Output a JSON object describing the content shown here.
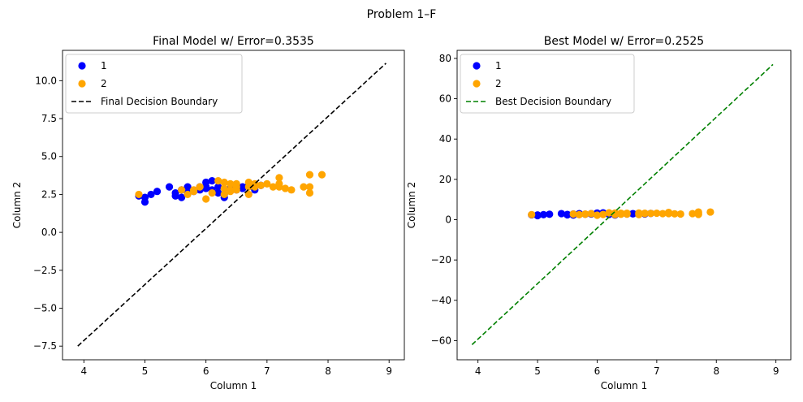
{
  "suptitle": "Problem 1–F",
  "colors": {
    "class1": "#0000ff",
    "class2": "#ffa500",
    "final_boundary": "#000000",
    "best_boundary": "#008000"
  },
  "chart_data": [
    {
      "type": "scatter",
      "title": "Final Model w/ Error=0.3535",
      "xlabel": "Column 1",
      "ylabel": "Column 2",
      "xlim": [
        3.65,
        9.25
      ],
      "ylim": [
        -8.4,
        12.0
      ],
      "xticks": [
        4,
        5,
        6,
        7,
        8,
        9
      ],
      "yticks": [
        -7.5,
        -5.0,
        -2.5,
        0.0,
        2.5,
        5.0,
        7.5,
        10.0
      ],
      "ytick_labels": [
        "−7.5",
        "−5.0",
        "−2.5",
        "0.0",
        "2.5",
        "5.0",
        "7.5",
        "10.0"
      ],
      "grid": false,
      "legend_position": "top-left",
      "series": [
        {
          "name": "1",
          "kind": "points",
          "color": "#0000ff",
          "x": [
            4.9,
            5.0,
            5.0,
            5.1,
            5.2,
            5.4,
            5.5,
            5.5,
            5.6,
            5.6,
            5.7,
            5.7,
            5.8,
            5.9,
            5.9,
            6.0,
            6.0,
            6.0,
            6.1,
            6.1,
            6.2,
            6.2,
            6.3,
            6.3,
            6.4,
            6.5,
            6.5,
            6.6,
            6.6,
            6.7,
            6.8,
            6.9
          ],
          "y": [
            2.4,
            2.3,
            2.0,
            2.5,
            2.7,
            3.0,
            2.4,
            2.6,
            2.3,
            2.8,
            2.6,
            3.0,
            2.7,
            3.0,
            2.8,
            3.0,
            3.3,
            2.9,
            2.8,
            3.4,
            2.6,
            3.0,
            2.3,
            2.5,
            2.9,
            3.0,
            2.8,
            3.0,
            2.9,
            3.1,
            2.8,
            3.1
          ]
        },
        {
          "name": "2",
          "kind": "points",
          "color": "#ffa500",
          "x": [
            4.9,
            5.6,
            5.7,
            5.8,
            5.8,
            5.9,
            6.0,
            6.1,
            6.2,
            6.3,
            6.3,
            6.3,
            6.4,
            6.4,
            6.4,
            6.5,
            6.5,
            6.5,
            6.7,
            6.7,
            6.7,
            6.8,
            6.8,
            6.9,
            7.0,
            7.1,
            7.2,
            7.2,
            7.2,
            7.3,
            7.4,
            7.6,
            7.7,
            7.7,
            7.7,
            7.9
          ],
          "y": [
            2.5,
            2.8,
            2.5,
            2.7,
            2.8,
            3.0,
            2.2,
            2.6,
            3.4,
            2.5,
            2.9,
            3.3,
            2.7,
            2.8,
            3.2,
            3.0,
            3.2,
            2.8,
            2.5,
            3.0,
            3.3,
            3.0,
            3.2,
            3.1,
            3.2,
            3.0,
            3.6,
            3.2,
            3.0,
            2.9,
            2.8,
            3.0,
            2.6,
            3.8,
            3.0,
            3.8
          ]
        },
        {
          "name": "Final Decision Boundary",
          "kind": "dashed-line",
          "color": "#000000",
          "x": [
            3.9,
            8.95
          ],
          "y": [
            -7.5,
            11.15
          ]
        }
      ]
    },
    {
      "type": "scatter",
      "title": "Best Model w/ Error=0.2525",
      "xlabel": "Column 1",
      "ylabel": "Column 2",
      "xlim": [
        3.65,
        9.25
      ],
      "ylim": [
        -69.5,
        84.0
      ],
      "xticks": [
        4,
        5,
        6,
        7,
        8,
        9
      ],
      "yticks": [
        -60,
        -40,
        -20,
        0,
        20,
        40,
        60,
        80
      ],
      "ytick_labels": [
        "−60",
        "−40",
        "−20",
        "0",
        "20",
        "40",
        "60",
        "80"
      ],
      "grid": false,
      "legend_position": "top-left",
      "series": [
        {
          "name": "1",
          "kind": "points",
          "color": "#0000ff",
          "x": [
            4.9,
            5.0,
            5.0,
            5.1,
            5.2,
            5.4,
            5.5,
            5.5,
            5.6,
            5.6,
            5.7,
            5.7,
            5.8,
            5.9,
            5.9,
            6.0,
            6.0,
            6.0,
            6.1,
            6.1,
            6.2,
            6.2,
            6.3,
            6.3,
            6.4,
            6.5,
            6.5,
            6.6,
            6.6,
            6.7,
            6.8,
            6.9
          ],
          "y": [
            2.4,
            2.3,
            2.0,
            2.5,
            2.7,
            3.0,
            2.4,
            2.6,
            2.3,
            2.8,
            2.6,
            3.0,
            2.7,
            3.0,
            2.8,
            3.0,
            3.3,
            2.9,
            2.8,
            3.4,
            2.6,
            3.0,
            2.3,
            2.5,
            2.9,
            3.0,
            2.8,
            3.0,
            2.9,
            3.1,
            2.8,
            3.1
          ]
        },
        {
          "name": "2",
          "kind": "points",
          "color": "#ffa500",
          "x": [
            4.9,
            5.6,
            5.7,
            5.8,
            5.8,
            5.9,
            6.0,
            6.1,
            6.2,
            6.3,
            6.3,
            6.3,
            6.4,
            6.4,
            6.4,
            6.5,
            6.5,
            6.5,
            6.7,
            6.7,
            6.7,
            6.8,
            6.8,
            6.9,
            7.0,
            7.1,
            7.2,
            7.2,
            7.2,
            7.3,
            7.4,
            7.6,
            7.7,
            7.7,
            7.7,
            7.9
          ],
          "y": [
            2.5,
            2.8,
            2.5,
            2.7,
            2.8,
            3.0,
            2.2,
            2.6,
            3.4,
            2.5,
            2.9,
            3.3,
            2.7,
            2.8,
            3.2,
            3.0,
            3.2,
            2.8,
            2.5,
            3.0,
            3.3,
            3.0,
            3.2,
            3.1,
            3.2,
            3.0,
            3.6,
            3.2,
            3.0,
            2.9,
            2.8,
            3.0,
            2.6,
            3.8,
            3.0,
            3.8
          ]
        },
        {
          "name": "Best Decision Boundary",
          "kind": "dashed-line",
          "color": "#008000",
          "x": [
            3.9,
            8.95
          ],
          "y": [
            -62.0,
            77.0
          ]
        }
      ]
    }
  ]
}
